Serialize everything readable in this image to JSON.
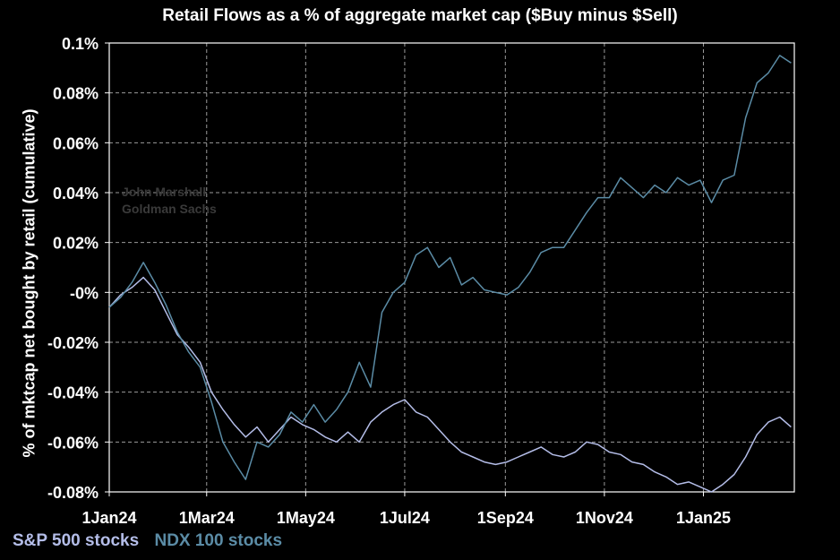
{
  "chart_data": {
    "type": "line",
    "title": "Retail Flows as a % of aggregate market cap ($Buy minus $Sell)",
    "ylabel": "% of mktcap net bought by retail (cumulative)",
    "xlabel": "",
    "ylim": [
      -0.08,
      0.1
    ],
    "xlim": [
      "2024-01-01",
      "2025-02-26"
    ],
    "grid": true,
    "legend_position": "bottom-left",
    "y_ticks": [
      {
        "value": 0.1,
        "label": "0.1%"
      },
      {
        "value": 0.08,
        "label": "0.08%"
      },
      {
        "value": 0.06,
        "label": "0.06%"
      },
      {
        "value": 0.04,
        "label": "0.04%"
      },
      {
        "value": 0.02,
        "label": "0.02%"
      },
      {
        "value": 0.0,
        "label": "-0%"
      },
      {
        "value": -0.02,
        "label": "-0.02%"
      },
      {
        "value": -0.04,
        "label": "-0.04%"
      },
      {
        "value": -0.06,
        "label": "-0.06%"
      },
      {
        "value": -0.08,
        "label": "-0.08%"
      }
    ],
    "x_ticks": [
      {
        "date": "2024-01-01",
        "label": "1Jan24"
      },
      {
        "date": "2024-03-01",
        "label": "1Mar24"
      },
      {
        "date": "2024-05-01",
        "label": "1May24"
      },
      {
        "date": "2024-07-01",
        "label": "1Jul24"
      },
      {
        "date": "2024-09-01",
        "label": "1Sep24"
      },
      {
        "date": "2024-11-01",
        "label": "1Nov24"
      },
      {
        "date": "2025-01-01",
        "label": "1Jan25"
      }
    ],
    "series": [
      {
        "name": "S&P 500 stocks",
        "color": "#b4bde8",
        "points": [
          [
            "2024-01-01",
            -0.006
          ],
          [
            "2024-01-08",
            -0.001
          ],
          [
            "2024-01-15",
            0.002
          ],
          [
            "2024-01-22",
            0.006
          ],
          [
            "2024-01-29",
            0.001
          ],
          [
            "2024-02-05",
            -0.008
          ],
          [
            "2024-02-12",
            -0.017
          ],
          [
            "2024-02-19",
            -0.022
          ],
          [
            "2024-02-26",
            -0.028
          ],
          [
            "2024-03-04",
            -0.04
          ],
          [
            "2024-03-11",
            -0.047
          ],
          [
            "2024-03-18",
            -0.053
          ],
          [
            "2024-03-25",
            -0.058
          ],
          [
            "2024-04-01",
            -0.054
          ],
          [
            "2024-04-08",
            -0.06
          ],
          [
            "2024-04-15",
            -0.055
          ],
          [
            "2024-04-22",
            -0.05
          ],
          [
            "2024-04-29",
            -0.053
          ],
          [
            "2024-05-06",
            -0.055
          ],
          [
            "2024-05-13",
            -0.058
          ],
          [
            "2024-05-20",
            -0.06
          ],
          [
            "2024-05-27",
            -0.056
          ],
          [
            "2024-06-03",
            -0.06
          ],
          [
            "2024-06-10",
            -0.052
          ],
          [
            "2024-06-17",
            -0.048
          ],
          [
            "2024-06-24",
            -0.045
          ],
          [
            "2024-07-01",
            -0.043
          ],
          [
            "2024-07-08",
            -0.048
          ],
          [
            "2024-07-15",
            -0.05
          ],
          [
            "2024-07-22",
            -0.055
          ],
          [
            "2024-07-29",
            -0.06
          ],
          [
            "2024-08-05",
            -0.064
          ],
          [
            "2024-08-12",
            -0.066
          ],
          [
            "2024-08-19",
            -0.068
          ],
          [
            "2024-08-26",
            -0.069
          ],
          [
            "2024-09-02",
            -0.068
          ],
          [
            "2024-09-09",
            -0.066
          ],
          [
            "2024-09-16",
            -0.064
          ],
          [
            "2024-09-23",
            -0.062
          ],
          [
            "2024-09-30",
            -0.065
          ],
          [
            "2024-10-07",
            -0.066
          ],
          [
            "2024-10-14",
            -0.064
          ],
          [
            "2024-10-21",
            -0.06
          ],
          [
            "2024-10-28",
            -0.061
          ],
          [
            "2024-11-04",
            -0.064
          ],
          [
            "2024-11-11",
            -0.065
          ],
          [
            "2024-11-18",
            -0.068
          ],
          [
            "2024-11-25",
            -0.069
          ],
          [
            "2024-12-02",
            -0.072
          ],
          [
            "2024-12-09",
            -0.074
          ],
          [
            "2024-12-16",
            -0.077
          ],
          [
            "2024-12-23",
            -0.076
          ],
          [
            "2024-12-30",
            -0.078
          ],
          [
            "2025-01-06",
            -0.08
          ],
          [
            "2025-01-13",
            -0.077
          ],
          [
            "2025-01-20",
            -0.073
          ],
          [
            "2025-01-27",
            -0.066
          ],
          [
            "2025-02-03",
            -0.057
          ],
          [
            "2025-02-10",
            -0.052
          ],
          [
            "2025-02-17",
            -0.05
          ],
          [
            "2025-02-24",
            -0.054
          ]
        ]
      },
      {
        "name": "NDX 100 stocks",
        "color": "#5b8ca6",
        "points": [
          [
            "2024-01-01",
            -0.006
          ],
          [
            "2024-01-08",
            -0.002
          ],
          [
            "2024-01-15",
            0.004
          ],
          [
            "2024-01-22",
            0.012
          ],
          [
            "2024-01-29",
            0.004
          ],
          [
            "2024-02-05",
            -0.005
          ],
          [
            "2024-02-12",
            -0.016
          ],
          [
            "2024-02-19",
            -0.024
          ],
          [
            "2024-02-26",
            -0.03
          ],
          [
            "2024-03-04",
            -0.044
          ],
          [
            "2024-03-11",
            -0.06
          ],
          [
            "2024-03-18",
            -0.068
          ],
          [
            "2024-03-25",
            -0.075
          ],
          [
            "2024-04-01",
            -0.06
          ],
          [
            "2024-04-08",
            -0.062
          ],
          [
            "2024-04-15",
            -0.057
          ],
          [
            "2024-04-22",
            -0.048
          ],
          [
            "2024-04-29",
            -0.052
          ],
          [
            "2024-05-06",
            -0.045
          ],
          [
            "2024-05-13",
            -0.052
          ],
          [
            "2024-05-20",
            -0.047
          ],
          [
            "2024-05-27",
            -0.04
          ],
          [
            "2024-06-03",
            -0.028
          ],
          [
            "2024-06-10",
            -0.038
          ],
          [
            "2024-06-17",
            -0.008
          ],
          [
            "2024-06-24",
            0.0
          ],
          [
            "2024-07-01",
            0.004
          ],
          [
            "2024-07-08",
            0.015
          ],
          [
            "2024-07-15",
            0.018
          ],
          [
            "2024-07-22",
            0.01
          ],
          [
            "2024-07-29",
            0.014
          ],
          [
            "2024-08-05",
            0.003
          ],
          [
            "2024-08-12",
            0.006
          ],
          [
            "2024-08-19",
            0.001
          ],
          [
            "2024-08-26",
            0.0
          ],
          [
            "2024-09-02",
            -0.001
          ],
          [
            "2024-09-09",
            0.002
          ],
          [
            "2024-09-16",
            0.008
          ],
          [
            "2024-09-23",
            0.016
          ],
          [
            "2024-09-30",
            0.018
          ],
          [
            "2024-10-07",
            0.018
          ],
          [
            "2024-10-14",
            0.025
          ],
          [
            "2024-10-21",
            0.032
          ],
          [
            "2024-10-28",
            0.038
          ],
          [
            "2024-11-04",
            0.038
          ],
          [
            "2024-11-11",
            0.046
          ],
          [
            "2024-11-18",
            0.042
          ],
          [
            "2024-11-25",
            0.038
          ],
          [
            "2024-12-02",
            0.043
          ],
          [
            "2024-12-09",
            0.04
          ],
          [
            "2024-12-16",
            0.046
          ],
          [
            "2024-12-23",
            0.043
          ],
          [
            "2024-12-30",
            0.045
          ],
          [
            "2025-01-06",
            0.036
          ],
          [
            "2025-01-13",
            0.045
          ],
          [
            "2025-01-20",
            0.047
          ],
          [
            "2025-01-27",
            0.07
          ],
          [
            "2025-02-03",
            0.084
          ],
          [
            "2025-02-10",
            0.088
          ],
          [
            "2025-02-17",
            0.095
          ],
          [
            "2025-02-24",
            0.092
          ]
        ]
      }
    ]
  },
  "watermark": {
    "line1": "John Marshall",
    "line2": "Goldman Sachs"
  },
  "colors": {
    "background": "#000000",
    "grid": "#9a9a9a",
    "axis": "#ffffff"
  }
}
